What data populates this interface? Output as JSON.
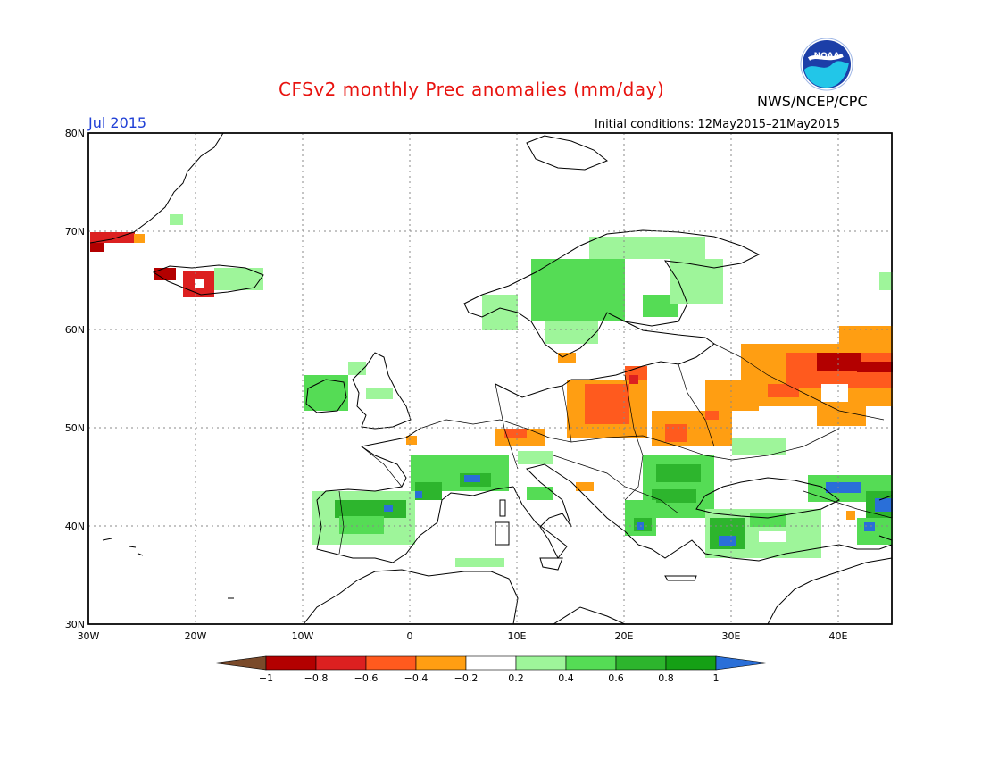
{
  "header": {
    "title": "CFSv2 monthly Prec anomalies (mm/day)",
    "period": "Jul 2015",
    "agency": "NWS/NCEP/CPC",
    "init_label": "Initial conditions: 12May2015–21May2015",
    "logo_text": "NOAA"
  },
  "map": {
    "lat_labels": [
      "80N",
      "70N",
      "60N",
      "50N",
      "40N",
      "30N"
    ],
    "lon_labels": [
      "30W",
      "20W",
      "10W",
      "0",
      "10E",
      "20E",
      "30E",
      "40E"
    ],
    "grid": "dotted"
  },
  "colorbar": {
    "ticks": [
      "−1",
      "−0.8",
      "−0.6",
      "−0.4",
      "−0.2",
      "0.2",
      "0.4",
      "0.6",
      "0.8",
      "1"
    ],
    "colors": [
      "#7a4a2a",
      "#b30000",
      "#dc2020",
      "#ff5a1e",
      "#ff9e12",
      "#ffffff",
      "#9ef59a",
      "#55dc55",
      "#2db52d",
      "#15a015",
      "#2a6fd8"
    ]
  }
}
